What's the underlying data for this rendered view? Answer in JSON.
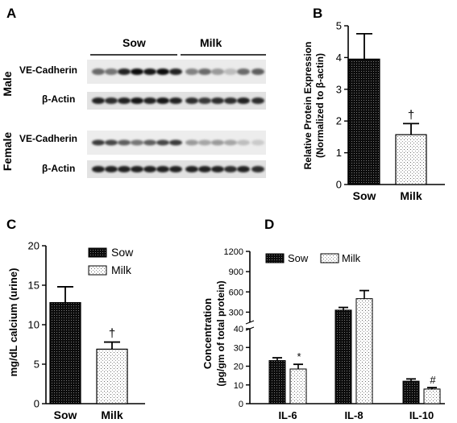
{
  "panels": {
    "a": "A",
    "b": "B",
    "c": "C",
    "d": "D"
  },
  "blot": {
    "groups": [
      "Sow",
      "Milk"
    ],
    "sections": [
      "Male",
      "Female"
    ],
    "rows": [
      "VE-Cadherin",
      "β-Actin",
      "VE-Cadherin",
      "β-Actin"
    ]
  },
  "colors": {
    "sow_fill": "#111111",
    "milk_fill": "#ffffff",
    "axis": "#000000"
  },
  "chart_data": [
    {
      "panel": "B",
      "type": "bar",
      "categories": [
        "Sow",
        "Milk"
      ],
      "values": [
        3.95,
        1.57
      ],
      "errors": [
        0.8,
        0.35
      ],
      "annotations": [
        "",
        "†"
      ],
      "ylabel": "Relative Protein Expression (Normalized to β-actin)",
      "ylabel_lines": [
        "Relative Protein Expression",
        "(Normalized to β-actin)"
      ],
      "yticks": [
        "0",
        "1",
        "2",
        "3",
        "4",
        "5"
      ],
      "ylim": [
        0,
        5
      ],
      "grid": false
    },
    {
      "panel": "C",
      "type": "bar",
      "categories": [
        "Sow",
        "Milk"
      ],
      "values": [
        12.8,
        6.9
      ],
      "errors": [
        2.0,
        0.9
      ],
      "annotations": [
        "",
        "†"
      ],
      "ylabel": "mg/dL calcium (urine)",
      "yticks": [
        "0",
        "5",
        "10",
        "15",
        "20"
      ],
      "ylim": [
        0,
        20
      ],
      "legend": [
        "Sow",
        "Milk"
      ],
      "legend_position": "top-right",
      "grid": false
    },
    {
      "panel": "D",
      "type": "bar",
      "categories": [
        "IL-6",
        "IL-8",
        "IL-10"
      ],
      "series": [
        {
          "name": "Sow",
          "values": [
            23,
            330,
            12
          ],
          "errors": [
            1.5,
            40,
            1.2
          ]
        },
        {
          "name": "Milk",
          "values": [
            18.5,
            500,
            7.8
          ],
          "errors": [
            2.5,
            120,
            0.8
          ]
        }
      ],
      "annotations": {
        "IL-6": "*",
        "IL-10": "#"
      },
      "ylabel": "Concentration (pg/gm of total protein)",
      "ylabel_lines": [
        "Concentration",
        "(pg/gm of total protein)"
      ],
      "yticks": [
        "0",
        "10",
        "20",
        "30",
        "40",
        "300",
        "600",
        "900",
        "1200"
      ],
      "ylim": [
        0,
        1200
      ],
      "axis_break": [
        40,
        150
      ],
      "legend": [
        "Sow",
        "Milk"
      ],
      "legend_position": "top",
      "grid": false
    }
  ]
}
